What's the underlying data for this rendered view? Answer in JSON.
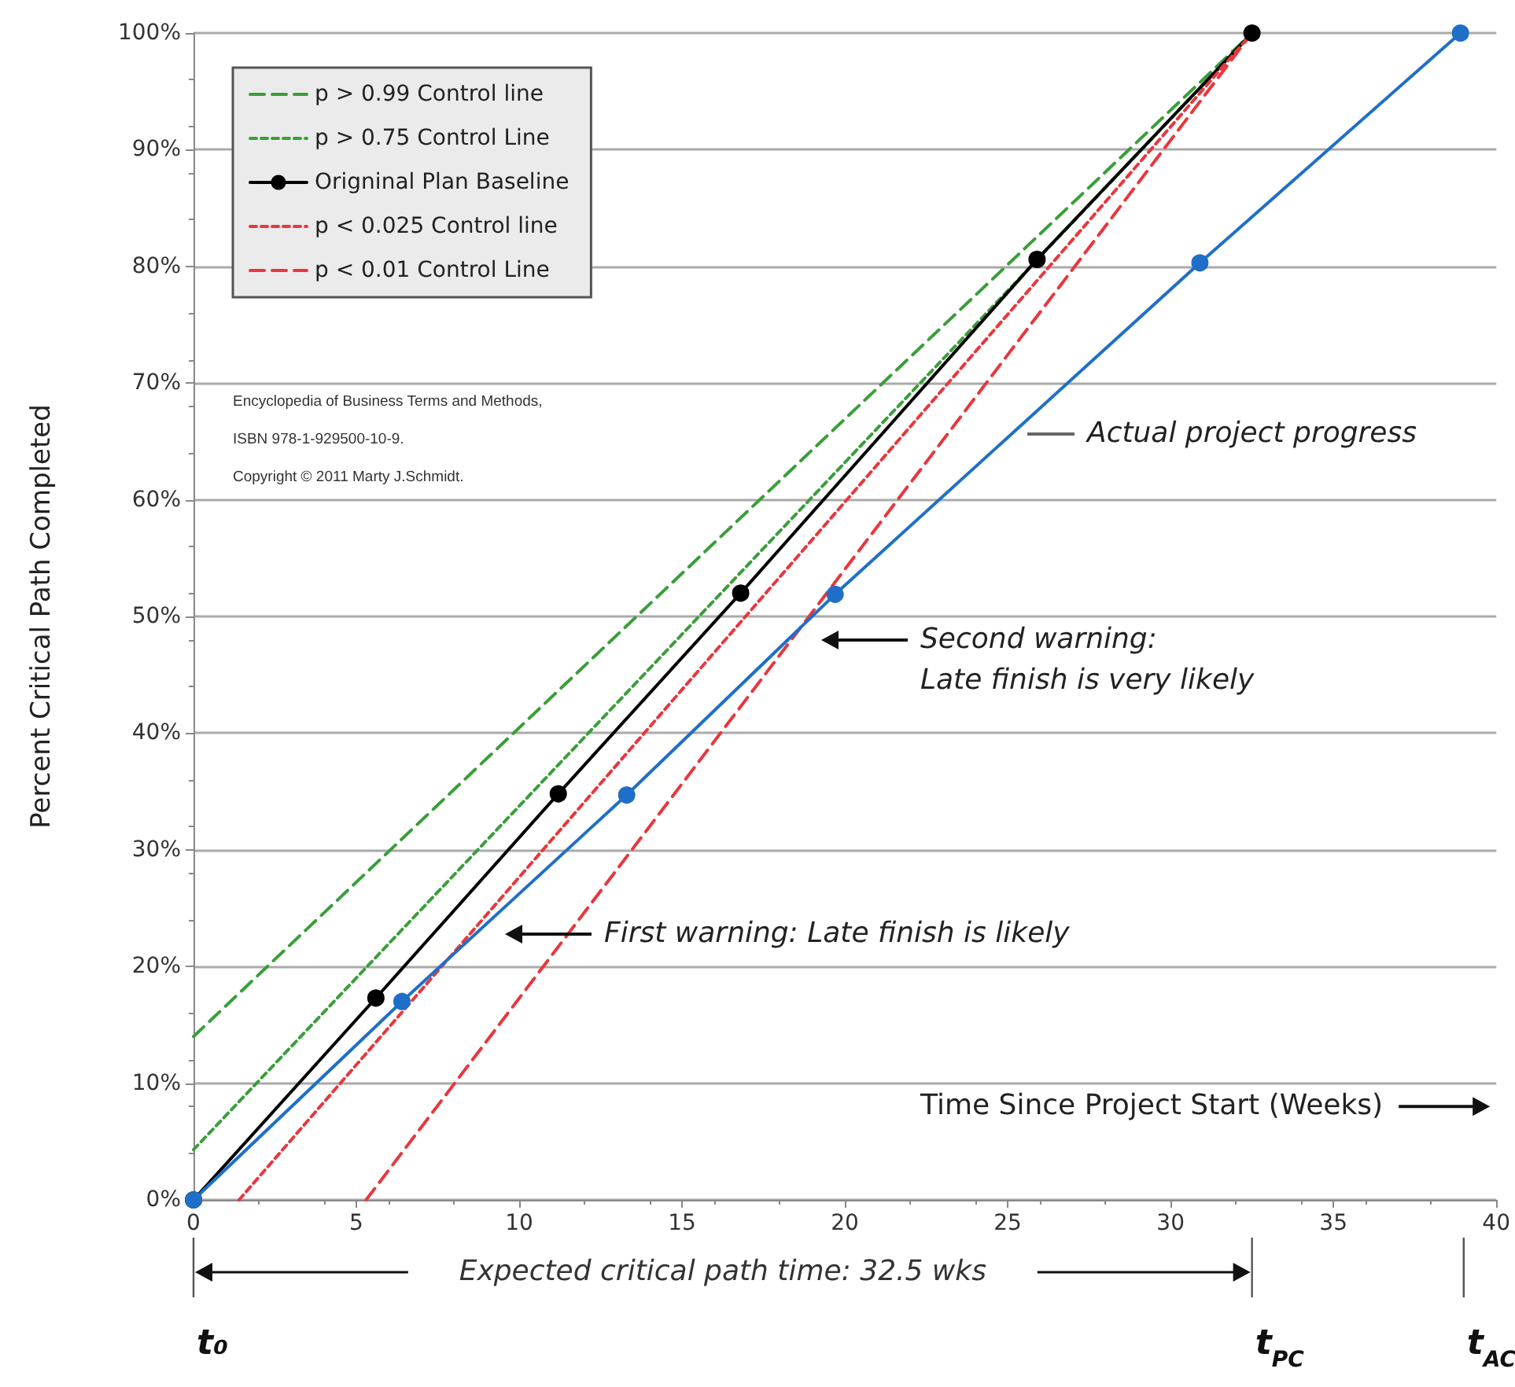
{
  "chart_data": {
    "type": "line",
    "xlabel": "Time Since Project Start (Weeks)",
    "ylabel": "Percent Critical Path Completed",
    "xlim": [
      0,
      40
    ],
    "xticks": [
      0,
      5,
      10,
      15,
      20,
      25,
      30,
      35,
      40
    ],
    "ylim": [
      0,
      100
    ],
    "yticks": [
      {
        "value": 0,
        "label": "0%"
      },
      {
        "value": 10,
        "label": "10%"
      },
      {
        "value": 20,
        "label": "20%"
      },
      {
        "value": 30,
        "label": "30%"
      },
      {
        "value": 40,
        "label": "40%"
      },
      {
        "value": 50,
        "label": "50%"
      },
      {
        "value": 60,
        "label": "60%"
      },
      {
        "value": 70,
        "label": "70%"
      },
      {
        "value": 80,
        "label": "80%"
      },
      {
        "value": 90,
        "label": "90%"
      },
      {
        "value": 100,
        "label": "100%"
      }
    ],
    "grid": "y",
    "legend": "top left",
    "series": [
      {
        "name": "p > 0.99 Control line",
        "color": "#3a9e3a",
        "line_style": "dashed",
        "marker": "none",
        "x": [
          0,
          32.5
        ],
        "values": [
          14,
          100
        ]
      },
      {
        "name": "p > 0.75 Control Line",
        "color": "#3a9e3a",
        "line_style": "dotted",
        "marker": "none",
        "x": [
          0,
          32.5
        ],
        "values": [
          4.3,
          100
        ]
      },
      {
        "name": "Origninal Plan Baseline",
        "color": "#000000",
        "line_style": "solid",
        "marker": "circle",
        "x": [
          0,
          5.6,
          11.2,
          16.8,
          25.9,
          32.5
        ],
        "values": [
          0,
          17.3,
          34.8,
          52,
          80.6,
          100
        ]
      },
      {
        "name": "p < 0.025 Control line",
        "color": "#e8363c",
        "line_style": "dotted",
        "marker": "none",
        "x": [
          1.4,
          32.5
        ],
        "values": [
          0,
          100
        ]
      },
      {
        "name": "p < 0.01 Control Line",
        "color": "#e8363c",
        "line_style": "dashed",
        "marker": "none",
        "x": [
          5.3,
          32.5
        ],
        "values": [
          0,
          100
        ]
      },
      {
        "color": "#1f6fc8",
        "line_style": "solid",
        "marker": "circle",
        "x": [
          0,
          6.4,
          13.3,
          19.7,
          30.9,
          38.9
        ],
        "values": [
          0,
          17,
          34.7,
          51.9,
          80.3,
          100
        ]
      }
    ],
    "ref_lines": [
      {
        "axis": "x",
        "value": 0,
        "label": "t₀"
      },
      {
        "axis": "x",
        "value": 32.5,
        "label": "t$_{PC}$"
      },
      {
        "axis": "x",
        "value": 39,
        "label": "t$_{AC}$"
      }
    ],
    "annotations": [
      "Expected critical path time: 32.5 wks",
      "Encyclopedia of Business Terms and Methods,",
      "ISBN 978-1-929500-10-9.",
      "Copyright © 2011 Marty J.Schmidt.",
      "Actual project progress",
      "Second warning:\nLate finish is very likely",
      "First warning: Late finish is likely"
    ]
  }
}
